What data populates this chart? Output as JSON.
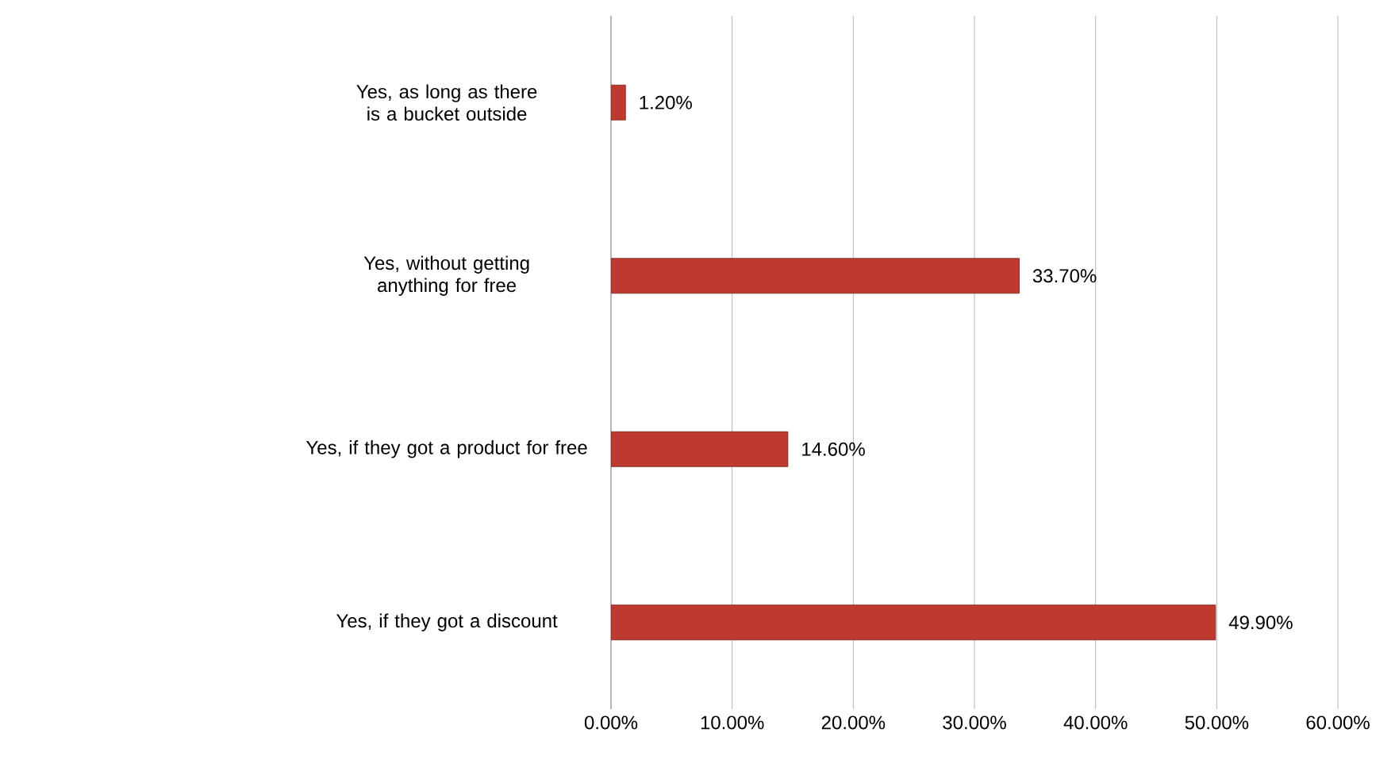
{
  "chart_data": {
    "type": "bar",
    "orientation": "horizontal",
    "categories": [
      "Yes, as long as there is a bucket outside",
      "Yes, without getting anything for free",
      "Yes, if they got a product for free",
      "Yes, if they got a discount"
    ],
    "values": [
      1.2,
      33.7,
      14.6,
      49.9
    ],
    "value_labels": [
      "1.20%",
      "33.70%",
      "14.60%",
      "49.90%"
    ],
    "color": "#c0392f",
    "xlim": [
      0,
      60
    ],
    "xticks": [
      {
        "value": 0,
        "label": "0.00%"
      },
      {
        "value": 10,
        "label": "10.00%"
      },
      {
        "value": 20,
        "label": "20.00%"
      },
      {
        "value": 30,
        "label": "30.00%"
      },
      {
        "value": 40,
        "label": "40.00%"
      },
      {
        "value": 50,
        "label": "50.00%"
      },
      {
        "value": 60,
        "label": "60.00%"
      }
    ],
    "grid": "x"
  }
}
